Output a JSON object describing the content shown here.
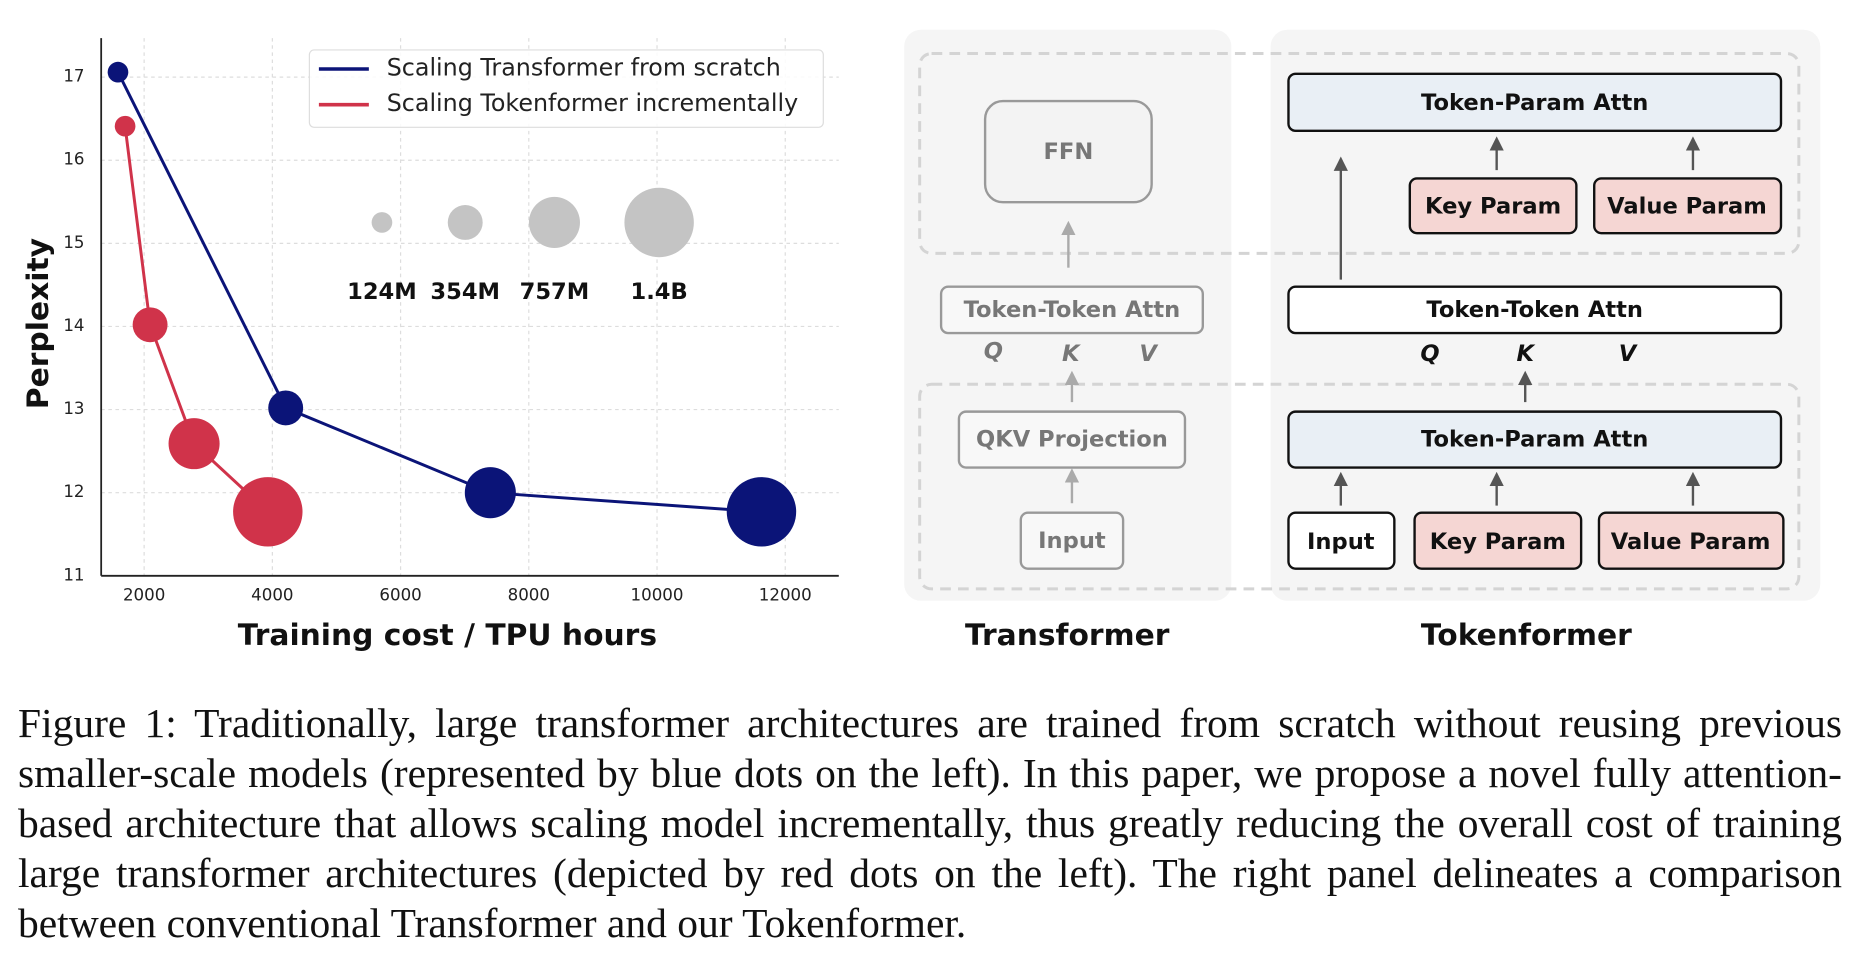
{
  "chart_data": {
    "type": "scatter",
    "xlabel": "Training cost / TPU hours",
    "ylabel": "Perplexity",
    "xlim": [
      1330,
      12835
    ],
    "ylim": [
      11,
      17.47
    ],
    "xticks": [
      2000,
      4000,
      6000,
      8000,
      10000,
      12000
    ],
    "yticks": [
      11,
      12,
      13,
      14,
      15,
      16,
      17
    ],
    "grid": true,
    "legend": "upper right",
    "series": [
      {
        "name": "Scaling Transformer from scratch",
        "color": "#0b1478",
        "x": [
          1592,
          4208,
          7400,
          11629
        ],
        "values": [
          17.06,
          13.02,
          12.0,
          11.77
        ],
        "sizes": [
          124,
          354,
          757,
          1400
        ]
      },
      {
        "name": "Scaling Tokenformer incrementally",
        "color": "#d0334a",
        "x": [
          1703,
          2093,
          2779,
          3929
        ],
        "values": [
          16.41,
          14.02,
          12.59,
          11.77
        ],
        "sizes": [
          124,
          354,
          757,
          1400
        ]
      }
    ],
    "size_legend": [
      {
        "value": 124,
        "label": "124M"
      },
      {
        "value": 354,
        "label": "354M"
      },
      {
        "value": 757,
        "label": "757M"
      },
      {
        "value": 1400,
        "label": "1.4B"
      }
    ]
  },
  "diagram": {
    "transformer": {
      "title": "Transformer",
      "ffn": "FFN",
      "attn": "Token-Token Attn",
      "q": "Q",
      "k": "K",
      "v": "V",
      "proj": "QKV Projection",
      "input": "Input"
    },
    "tokenformer": {
      "title": "Tokenformer",
      "top_attn": "Token-Param Attn",
      "top_key": "Key Param",
      "top_value": "Value Param",
      "attn": "Token-Token Attn",
      "q": "Q",
      "k": "K",
      "v": "V",
      "bottom_attn": "Token-Param Attn",
      "input": "Input",
      "bottom_key": "Key Param",
      "bottom_value": "Value Param"
    }
  },
  "caption": "Figure 1: Traditionally, large transformer architectures are trained from scratch without reusing previous smaller-scale models (represented by blue dots on the left). In this paper, we propose a novel fully attention-based architecture that allows scaling model incrementally, thus greatly reducing the overall cost of training large transformer architectures (depicted by red dots on the left). The right panel delineates a comparison between conventional Transformer and our Tokenformer."
}
